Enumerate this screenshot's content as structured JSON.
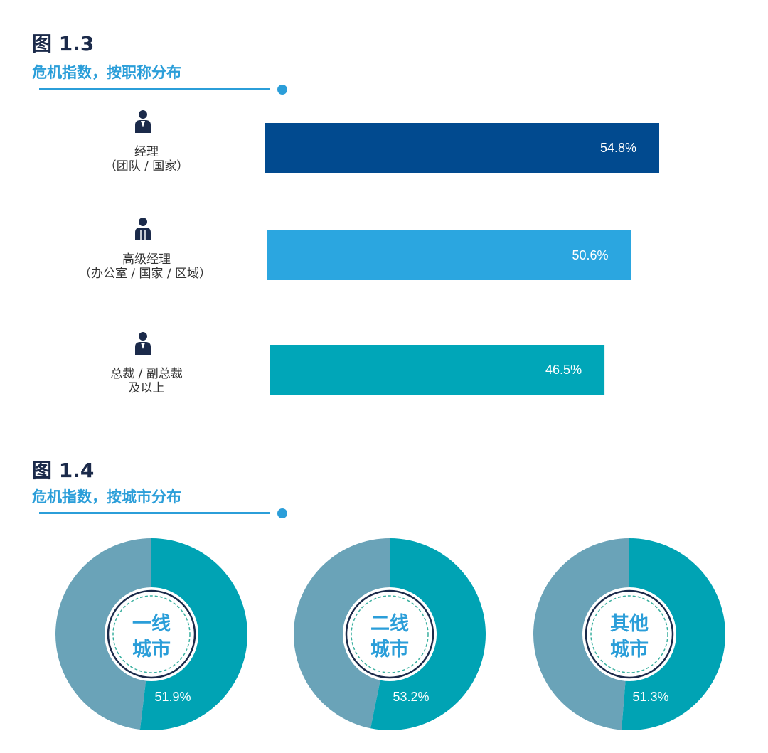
{
  "colors": {
    "navy": "#1b2a4a",
    "accent": "#2b9ed9",
    "bar_manager": "#014a8f",
    "bar_senior": "#2ba6e0",
    "bar_exec": "#00a6b8",
    "donut_value": "#00a3b4",
    "donut_rest": "#6aa3b8"
  },
  "figure_1_3": {
    "label": "图 1.3",
    "subtitle": "危机指数，按职称分布"
  },
  "figure_1_4": {
    "label": "图 1.4",
    "subtitle": "危机指数，按城市分布"
  },
  "chart_data": [
    {
      "type": "bar",
      "orientation": "horizontal",
      "title": "危机指数，按职称分布",
      "categories": [
        {
          "lines": [
            "经理",
            "（团队 / 国家）"
          ],
          "icon": "manager-person-icon"
        },
        {
          "lines": [
            "高级经理",
            "（办公室 / 国家 / 区域）"
          ],
          "icon": "senior-manager-person-icon"
        },
        {
          "lines": [
            "总裁 / 副总裁",
            "及以上"
          ],
          "icon": "executive-person-icon"
        }
      ],
      "values": [
        54.8,
        50.6,
        46.5
      ],
      "value_labels": [
        "54.8%",
        "50.6%",
        "46.5%"
      ],
      "unit": "%",
      "grid": false,
      "legend": "none"
    },
    {
      "type": "pie",
      "style": "donut",
      "title": "危机指数，按城市分布",
      "categories": [
        {
          "lines": [
            "一线",
            "城市"
          ]
        },
        {
          "lines": [
            "二线",
            "城市"
          ]
        },
        {
          "lines": [
            "其他",
            "城市"
          ]
        }
      ],
      "values": [
        51.9,
        53.2,
        51.3
      ],
      "value_labels": [
        "51.9%",
        "53.2%",
        "51.3%"
      ],
      "unit": "%",
      "legend": "none"
    }
  ]
}
